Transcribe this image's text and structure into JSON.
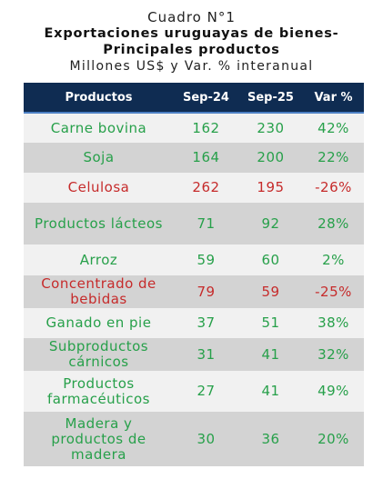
{
  "header": {
    "caption": "Cuadro N°1",
    "title_line1": "Exportaciones uruguayas de bienes-",
    "title_line2": "Principales productos",
    "subtitle": "Millones US$ y Var. % interanual"
  },
  "table": {
    "columns": [
      "Productos",
      "Sep-24",
      "Sep-25",
      "Var %"
    ],
    "rows": [
      {
        "product": "Carne bovina",
        "sep24": "162",
        "sep25": "230",
        "var": "42%"
      },
      {
        "product": "Soja",
        "sep24": "164",
        "sep25": "200",
        "var": "22%"
      },
      {
        "product": "Celulosa",
        "sep24": "262",
        "sep25": "195",
        "var": "-26%"
      },
      {
        "product": "Productos lácteos",
        "sep24": "71",
        "sep25": "92",
        "var": "28%"
      },
      {
        "product": "Arroz",
        "sep24": "59",
        "sep25": "60",
        "var": "2%"
      },
      {
        "product": "Concentrado de bebidas",
        "sep24": "79",
        "sep25": "59",
        "var": "-25%"
      },
      {
        "product": "Ganado en pie",
        "sep24": "37",
        "sep25": "51",
        "var": "38%"
      },
      {
        "product": "Subproductos cárnicos",
        "sep24": "31",
        "sep25": "41",
        "var": "32%"
      },
      {
        "product": "Productos farmacéuticos",
        "sep24": "27",
        "sep25": "41",
        "var": "49%"
      },
      {
        "product": "Madera y productos de madera",
        "sep24": "30",
        "sep25": "36",
        "var": "20%"
      }
    ]
  },
  "colors": {
    "header_bg": "#0f2c52",
    "positive": "#27a04a",
    "negative": "#c62b2b",
    "row_alt": "#d3d3d3",
    "row_plain": "#f1f1f1"
  }
}
